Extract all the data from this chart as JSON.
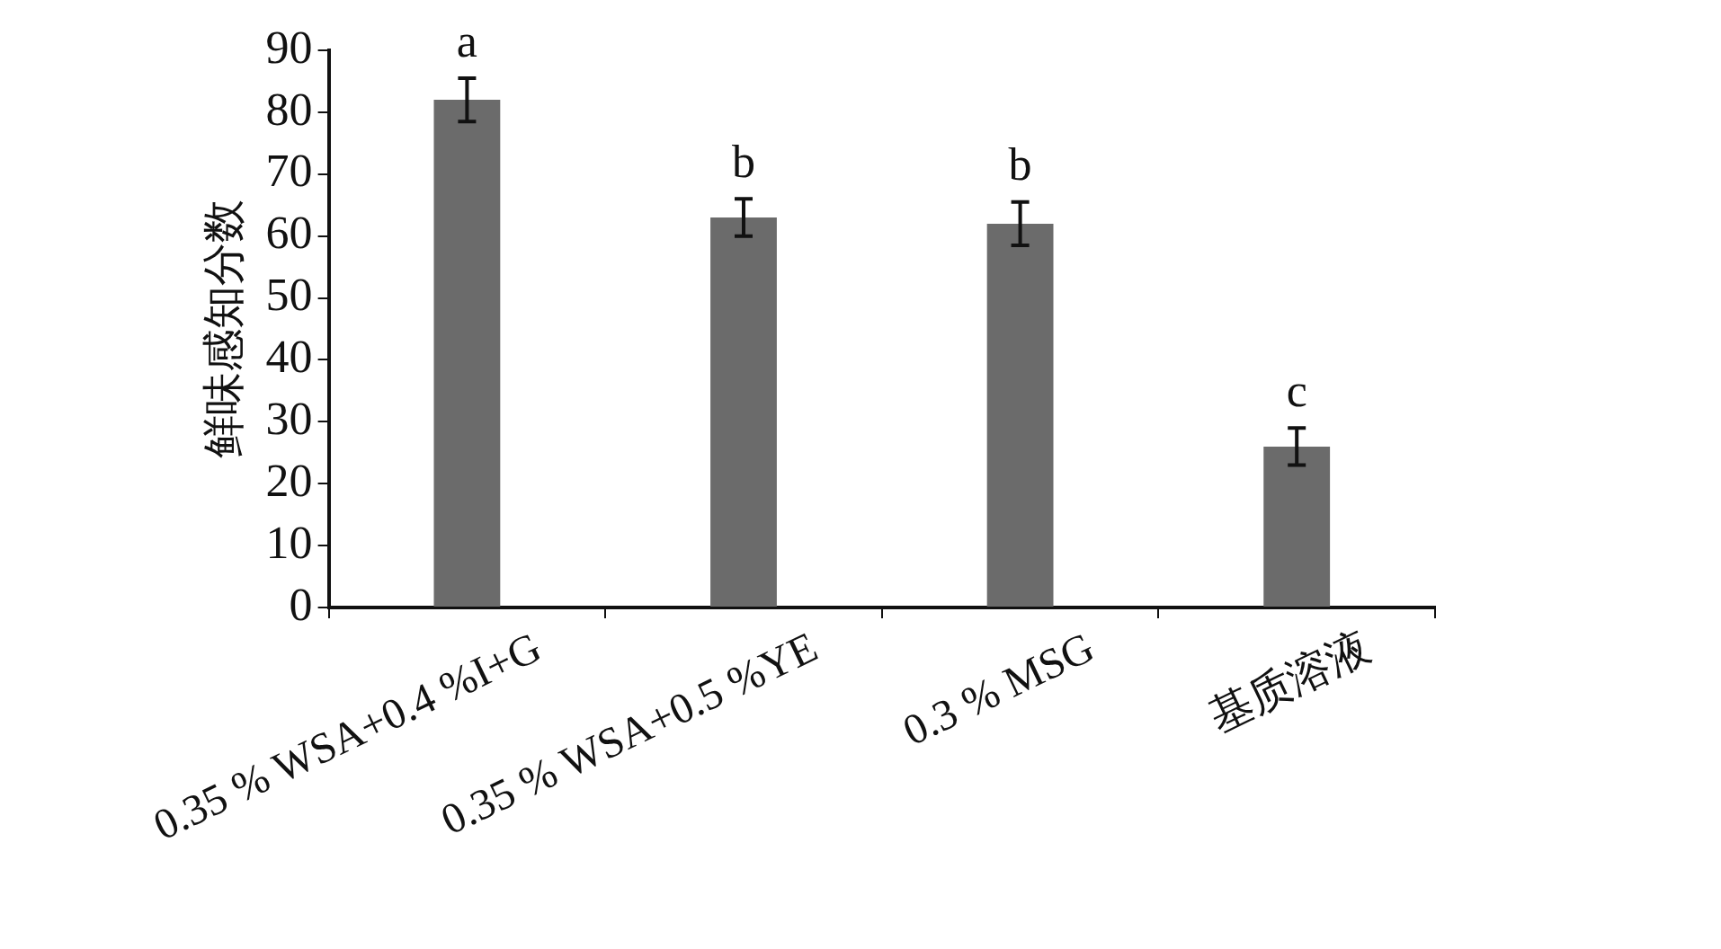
{
  "chart_data": {
    "type": "bar",
    "ylabel": "鲜味感知分数",
    "categories": [
      "0.35 % WSA+0.4 %I+G",
      "0.35 % WSA+0.5 %YE",
      "0.3 % MSG",
      "基质溶液"
    ],
    "values": [
      82,
      63,
      62,
      26
    ],
    "errors": [
      3.5,
      3,
      3.5,
      3
    ],
    "color": "#6b6b6b",
    "ylim": [
      0,
      90
    ],
    "yticks": [
      0,
      10,
      20,
      30,
      40,
      50,
      60,
      70,
      80,
      90
    ],
    "grid": false,
    "legend": false,
    "annotations": [
      "a",
      "b",
      "b",
      "c"
    ]
  }
}
